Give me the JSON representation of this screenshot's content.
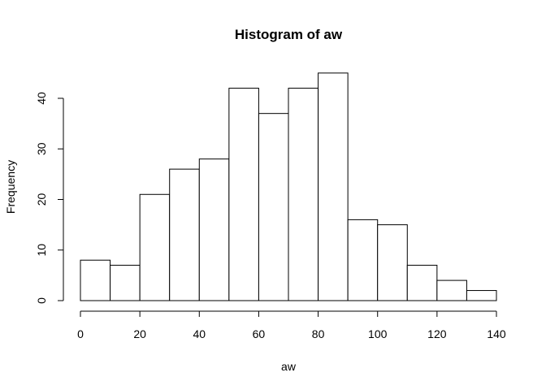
{
  "chart_data": {
    "type": "bar",
    "title": "Histogram of aw",
    "xlabel": "aw",
    "ylabel": "Frequency",
    "bins": [
      {
        "start": 0,
        "end": 10,
        "count": 8
      },
      {
        "start": 10,
        "end": 20,
        "count": 7
      },
      {
        "start": 20,
        "end": 30,
        "count": 21
      },
      {
        "start": 30,
        "end": 40,
        "count": 26
      },
      {
        "start": 40,
        "end": 50,
        "count": 28
      },
      {
        "start": 50,
        "end": 60,
        "count": 42
      },
      {
        "start": 60,
        "end": 70,
        "count": 37
      },
      {
        "start": 70,
        "end": 80,
        "count": 42
      },
      {
        "start": 80,
        "end": 90,
        "count": 45
      },
      {
        "start": 90,
        "end": 100,
        "count": 16
      },
      {
        "start": 100,
        "end": 110,
        "count": 15
      },
      {
        "start": 110,
        "end": 120,
        "count": 7
      },
      {
        "start": 120,
        "end": 130,
        "count": 4
      },
      {
        "start": 130,
        "end": 140,
        "count": 2
      }
    ],
    "xlim": [
      0,
      140
    ],
    "ylim": [
      0,
      45
    ],
    "x_ticks": [
      0,
      20,
      40,
      60,
      80,
      100,
      120,
      140
    ],
    "y_ticks": [
      0,
      10,
      20,
      30,
      40
    ],
    "grid": false,
    "bar_fill": "#ffffff",
    "bar_stroke": "#000000"
  }
}
